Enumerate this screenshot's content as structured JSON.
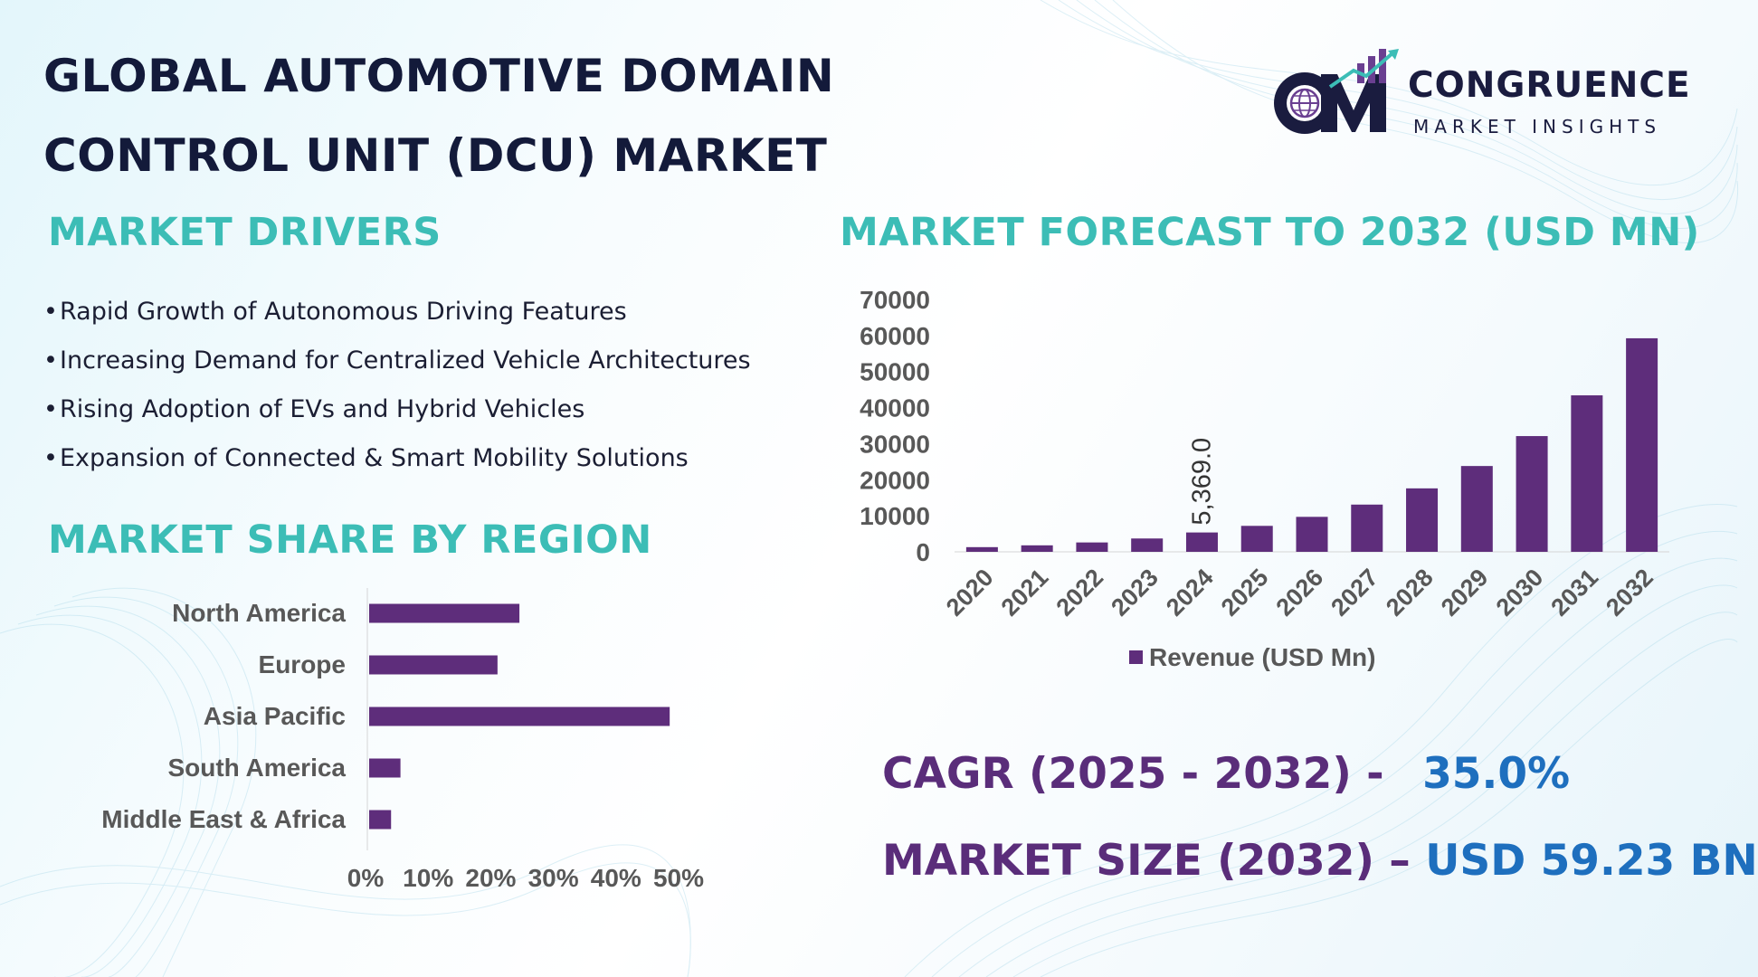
{
  "title": {
    "line1": "GLOBAL AUTOMOTIVE DOMAIN",
    "line2": "CONTROL UNIT (DCU) MARKET"
  },
  "logo": {
    "mark": "CM",
    "name": "CONGRUENCE",
    "sub": "MARKET INSIGHTS",
    "icon": "globe-bar-chart-logo"
  },
  "drivers": {
    "heading": "MARKET DRIVERS",
    "items": [
      "Rapid Growth of Autonomous Driving Features",
      "Increasing Demand for Centralized Vehicle Architectures",
      "Rising Adoption of EVs and Hybrid Vehicles",
      "Expansion of Connected & Smart Mobility Solutions"
    ]
  },
  "region": {
    "heading": "MARKET SHARE BY REGION"
  },
  "forecast": {
    "heading": "MARKET FORECAST TO 2032 (USD MN)"
  },
  "stats": {
    "cagr_label": "CAGR (2025 - 2032) -",
    "cagr_value": "35.0%",
    "size_label": "MARKET SIZE (2032) –",
    "size_value": "USD 59.23 BN"
  },
  "colors": {
    "bar": "#5e2d7b",
    "heading": "#3cbdb6",
    "title": "#131a3a",
    "stat_label": "#5a2d7a",
    "stat_value": "#1e6fbe"
  },
  "chart_data": [
    {
      "type": "bar",
      "orientation": "horizontal",
      "title": "MARKET SHARE BY REGION",
      "categories": [
        "North America",
        "Europe",
        "Asia Pacific",
        "South America",
        "Middle East & Africa"
      ],
      "values": [
        24,
        20.5,
        48,
        5,
        3.5
      ],
      "xticks": [
        "0%",
        "10%",
        "20%",
        "30%",
        "40%",
        "50%"
      ],
      "xlim": [
        0,
        50
      ],
      "unit": "%"
    },
    {
      "type": "bar",
      "title": "MARKET FORECAST TO 2032 (USD MN)",
      "categories": [
        "2020",
        "2021",
        "2022",
        "2023",
        "2024",
        "2025",
        "2026",
        "2027",
        "2028",
        "2029",
        "2030",
        "2031",
        "2032"
      ],
      "series": [
        {
          "name": "Revenue (USD Mn)",
          "values": [
            1300,
            1800,
            2600,
            3700,
            5369,
            7200,
            9700,
            13100,
            17600,
            23800,
            32100,
            43400,
            59230
          ]
        }
      ],
      "data_labels": [
        {
          "category": "2024",
          "text": "5,369.0"
        }
      ],
      "yticks": [
        "70000",
        "60000",
        "50000",
        "40000",
        "30000",
        "20000",
        "10000",
        "0"
      ],
      "ylim": [
        0,
        70000
      ],
      "legend": "bottom"
    }
  ]
}
